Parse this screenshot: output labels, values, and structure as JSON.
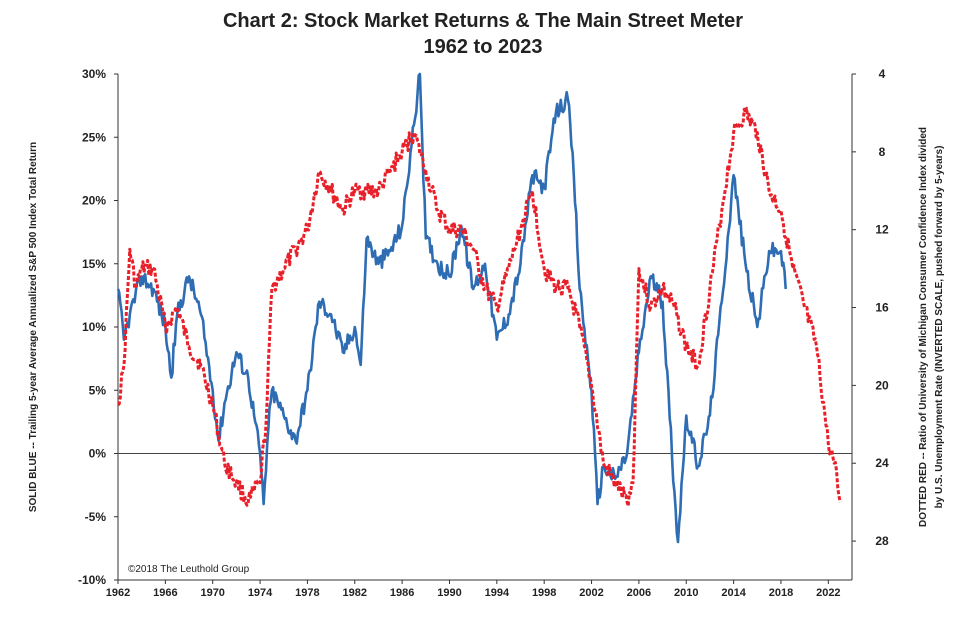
{
  "chart_data": {
    "type": "line",
    "title": "Chart 2: Stock Market Returns & The Main Street Meter",
    "subtitle": "1962 to 2023",
    "ylabel_left": "SOLID BLUE -- Trailing 5-year Average Annualized S&P 500 Index Total Return",
    "ylabel_right_line1": "DOTTED RED -- Ratio of University of Michigan Consumer Confidence Index divided",
    "ylabel_right_line2": "by U.S. Unemployment Rate (INVERTED SCALE, pushed forward by 5-years)",
    "credit": "©2018 The Leuthold Group",
    "xlim": [
      1962,
      2024
    ],
    "ylim_left": [
      -10,
      30
    ],
    "ylim_right": [
      4,
      30
    ],
    "right_axis_inverted": true,
    "x_ticks": [
      "1962",
      "1966",
      "1970",
      "1974",
      "1978",
      "1982",
      "1986",
      "1990",
      "1994",
      "1998",
      "2002",
      "2006",
      "2010",
      "2014",
      "2018",
      "2022"
    ],
    "y_left_ticks": [
      "30%",
      "25%",
      "20%",
      "15%",
      "10%",
      "5%",
      "0%",
      "-5%",
      "-10%"
    ],
    "y_right_ticks": [
      "4",
      "8",
      "12",
      "16",
      "20",
      "24",
      "28"
    ],
    "colors": {
      "blue": "#2e6db4",
      "red": "#e8202a",
      "zero_line": "#444444"
    },
    "series": [
      {
        "name": "SOLID BLUE",
        "axis": "left",
        "x": [
          1962,
          1962.5,
          1963,
          1964,
          1965,
          1966,
          1966.5,
          1967,
          1968,
          1969,
          1970,
          1970.5,
          1971,
          1972,
          1973,
          1974,
          1974.3,
          1974.7,
          1975,
          1976,
          1977,
          1978,
          1979,
          1980,
          1981,
          1982,
          1982.5,
          1983,
          1984,
          1985,
          1986,
          1987,
          1987.5,
          1988,
          1989,
          1990,
          1991,
          1992,
          1993,
          1994,
          1995,
          1996,
          1997,
          1998,
          1999,
          2000,
          2000.5,
          2001,
          2002,
          2002.5,
          2003,
          2004,
          2005,
          2006,
          2007,
          2008,
          2009,
          2009.3,
          2010,
          2011,
          2012,
          2013,
          2014,
          2015,
          2016,
          2017,
          2018,
          2018.4
        ],
        "y": [
          13,
          9,
          11,
          14,
          13,
          10,
          6,
          11,
          14,
          11,
          5,
          1,
          4,
          8,
          6,
          0,
          -4,
          2,
          5,
          3,
          1,
          5,
          12,
          11,
          8,
          10,
          7,
          17,
          15,
          16,
          18,
          26,
          30,
          17,
          15,
          14,
          18,
          13,
          15,
          9,
          11,
          15,
          22,
          21,
          27,
          28,
          22,
          13,
          5,
          -4,
          -1,
          -2,
          0,
          8,
          14,
          12,
          -3,
          -7,
          3,
          -1,
          3,
          12,
          22,
          15,
          10,
          16,
          16,
          13
        ]
      },
      {
        "name": "DOTTED RED",
        "axis": "right",
        "x": [
          1962,
          1962.5,
          1963,
          1963.5,
          1964,
          1965,
          1966,
          1967,
          1968,
          1969,
          1970,
          1971,
          1972,
          1973,
          1974,
          1974.5,
          1975,
          1976,
          1977,
          1978,
          1979,
          1980,
          1981,
          1982,
          1983,
          1984,
          1985,
          1986,
          1987,
          1988,
          1989,
          1990,
          1991,
          1992,
          1993,
          1994,
          1995,
          1996,
          1997,
          1998,
          1999,
          2000,
          2001,
          2002,
          2003,
          2004,
          2005,
          2005.5,
          2006,
          2007,
          2008,
          2009,
          2010,
          2011,
          2012,
          2013,
          2014,
          2015,
          2016,
          2017,
          2018,
          2019,
          2020,
          2021,
          2022,
          2022.5,
          2023
        ],
        "y": [
          21,
          19,
          13,
          15,
          14,
          14,
          17,
          16,
          18,
          19,
          21,
          24,
          25,
          26,
          25,
          22,
          15,
          14,
          13,
          12,
          9,
          10,
          11,
          10,
          10,
          10,
          9,
          8,
          7,
          9,
          11,
          12,
          12,
          13,
          15,
          16,
          14,
          12,
          10,
          14,
          15,
          15,
          17,
          20,
          24,
          25,
          26,
          25,
          14,
          16,
          15,
          16,
          18,
          19,
          15,
          11,
          7,
          6,
          7,
          10,
          11,
          14,
          16,
          18,
          23,
          24,
          26
        ]
      }
    ]
  }
}
